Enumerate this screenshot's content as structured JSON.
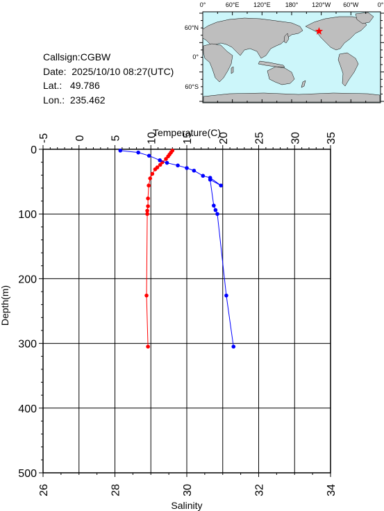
{
  "station": {
    "callsign_label": "Callsign:",
    "callsign": "CGBW",
    "date_label": "Date:",
    "date": "2025/10/10 08:27(UTC)",
    "lat_label": "Lat.:",
    "lat": "49.786",
    "lon_label": "Lon.:",
    "lon": "235.462"
  },
  "map": {
    "lon_ticks": [
      "0°",
      "60°E",
      "120°E",
      "180°",
      "120°W",
      "60°W",
      "0°"
    ],
    "lat_ticks": [
      "60°N",
      "0°",
      "60°S"
    ],
    "ocean_color": "#ccf6fa",
    "land_color": "#bebebe",
    "marker_color": "#ff0000",
    "marker": {
      "lon": 235.462,
      "lat": 49.786
    }
  },
  "chart_data": {
    "type": "line",
    "ylabel": "Depth(m)",
    "ylim": [
      500,
      0
    ],
    "y_ticks": [
      0,
      100,
      200,
      300,
      400,
      500
    ],
    "top_axis": {
      "label": "Temperature(C)",
      "range": [
        -5,
        35
      ],
      "ticks": [
        -5,
        0,
        5,
        10,
        15,
        20,
        25,
        30,
        35
      ]
    },
    "bottom_axis": {
      "label": "Salinity",
      "range": [
        26,
        34
      ],
      "ticks": [
        26,
        28,
        30,
        32,
        34
      ]
    },
    "grid": true,
    "series": [
      {
        "axis": "top",
        "color": "#ff0000",
        "points": [
          {
            "x": 13.0,
            "depth": 2
          },
          {
            "x": 12.8,
            "depth": 5
          },
          {
            "x": 12.6,
            "depth": 8
          },
          {
            "x": 12.4,
            "depth": 11
          },
          {
            "x": 12.1,
            "depth": 15
          },
          {
            "x": 11.6,
            "depth": 20
          },
          {
            "x": 11.3,
            "depth": 24
          },
          {
            "x": 10.9,
            "depth": 28
          },
          {
            "x": 10.6,
            "depth": 31
          },
          {
            "x": 10.2,
            "depth": 38
          },
          {
            "x": 9.9,
            "depth": 45
          },
          {
            "x": 9.7,
            "depth": 56
          },
          {
            "x": 9.6,
            "depth": 76
          },
          {
            "x": 9.6,
            "depth": 88
          },
          {
            "x": 9.5,
            "depth": 95
          },
          {
            "x": 9.5,
            "depth": 100
          },
          {
            "x": 9.4,
            "depth": 226
          },
          {
            "x": 9.6,
            "depth": 305
          }
        ]
      },
      {
        "axis": "bottom",
        "color": "#0000ff",
        "points": [
          {
            "x": 28.15,
            "depth": 2
          },
          {
            "x": 28.65,
            "depth": 5
          },
          {
            "x": 28.95,
            "depth": 10
          },
          {
            "x": 29.25,
            "depth": 17
          },
          {
            "x": 29.45,
            "depth": 21
          },
          {
            "x": 29.75,
            "depth": 25
          },
          {
            "x": 30.0,
            "depth": 29
          },
          {
            "x": 30.2,
            "depth": 33
          },
          {
            "x": 30.45,
            "depth": 41
          },
          {
            "x": 30.65,
            "depth": 44
          },
          {
            "x": 30.95,
            "depth": 56
          },
          {
            "x": 30.65,
            "depth": 47
          },
          {
            "x": 30.75,
            "depth": 87
          },
          {
            "x": 30.8,
            "depth": 94
          },
          {
            "x": 30.85,
            "depth": 100
          },
          {
            "x": 31.1,
            "depth": 226
          },
          {
            "x": 31.3,
            "depth": 305
          }
        ]
      }
    ]
  }
}
